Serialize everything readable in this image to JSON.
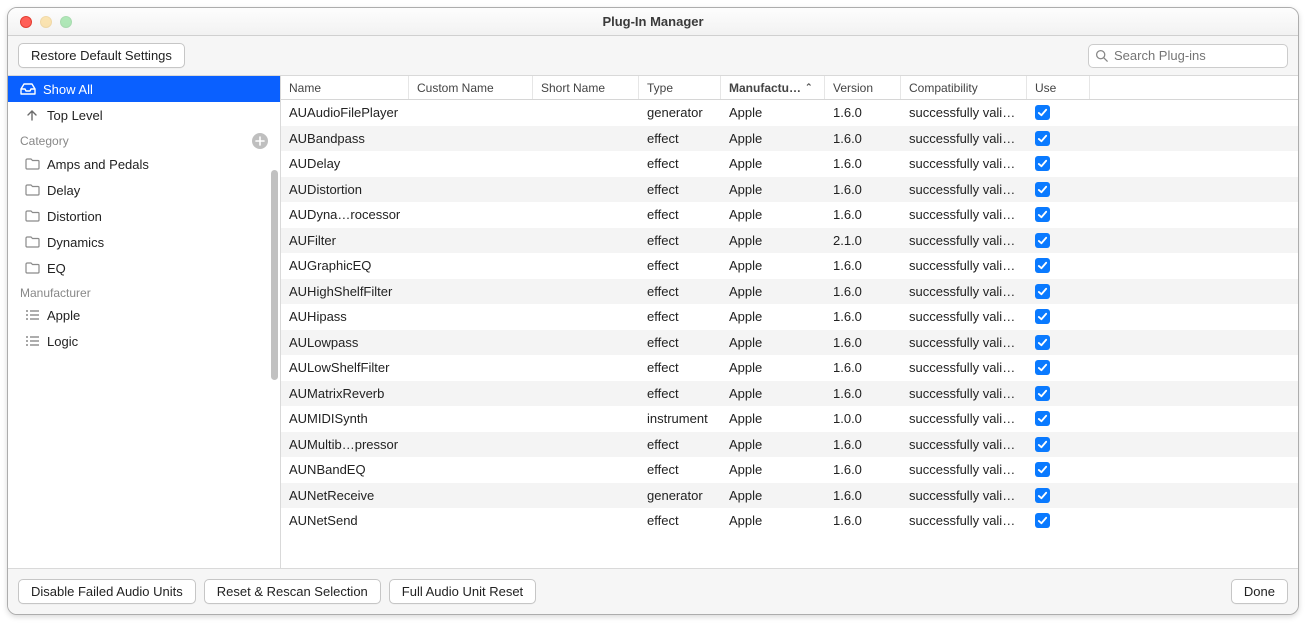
{
  "window": {
    "title": "Plug-In Manager"
  },
  "toolbar": {
    "restore": "Restore Default Settings",
    "search_placeholder": "Search Plug-ins"
  },
  "sidebar": {
    "show_all": "Show All",
    "top_level": "Top Level",
    "category_header": "Category",
    "categories": [
      {
        "label": "Amps and Pedals"
      },
      {
        "label": "Delay"
      },
      {
        "label": "Distortion"
      },
      {
        "label": "Dynamics"
      },
      {
        "label": "EQ"
      }
    ],
    "manufacturer_header": "Manufacturer",
    "manufacturers": [
      {
        "label": "Apple"
      },
      {
        "label": "Logic"
      }
    ]
  },
  "table": {
    "columns": {
      "name": "Name",
      "custom": "Custom Name",
      "short": "Short Name",
      "type": "Type",
      "manufacturer": "Manufactu…",
      "version": "Version",
      "compat": "Compatibility",
      "use": "Use"
    },
    "rows": [
      {
        "name": "AUAudioFilePlayer",
        "type": "generator",
        "mfr": "Apple",
        "ver": "1.6.0",
        "compat": "successfully vali…",
        "use": true
      },
      {
        "name": "AUBandpass",
        "type": "effect",
        "mfr": "Apple",
        "ver": "1.6.0",
        "compat": "successfully vali…",
        "use": true
      },
      {
        "name": "AUDelay",
        "type": "effect",
        "mfr": "Apple",
        "ver": "1.6.0",
        "compat": "successfully vali…",
        "use": true
      },
      {
        "name": "AUDistortion",
        "type": "effect",
        "mfr": "Apple",
        "ver": "1.6.0",
        "compat": "successfully vali…",
        "use": true
      },
      {
        "name": "AUDyna…rocessor",
        "type": "effect",
        "mfr": "Apple",
        "ver": "1.6.0",
        "compat": "successfully vali…",
        "use": true
      },
      {
        "name": "AUFilter",
        "type": "effect",
        "mfr": "Apple",
        "ver": "2.1.0",
        "compat": "successfully vali…",
        "use": true
      },
      {
        "name": "AUGraphicEQ",
        "type": "effect",
        "mfr": "Apple",
        "ver": "1.6.0",
        "compat": "successfully vali…",
        "use": true
      },
      {
        "name": "AUHighShelfFilter",
        "type": "effect",
        "mfr": "Apple",
        "ver": "1.6.0",
        "compat": "successfully vali…",
        "use": true
      },
      {
        "name": "AUHipass",
        "type": "effect",
        "mfr": "Apple",
        "ver": "1.6.0",
        "compat": "successfully vali…",
        "use": true
      },
      {
        "name": "AULowpass",
        "type": "effect",
        "mfr": "Apple",
        "ver": "1.6.0",
        "compat": "successfully vali…",
        "use": true
      },
      {
        "name": "AULowShelfFilter",
        "type": "effect",
        "mfr": "Apple",
        "ver": "1.6.0",
        "compat": "successfully vali…",
        "use": true
      },
      {
        "name": "AUMatrixReverb",
        "type": "effect",
        "mfr": "Apple",
        "ver": "1.6.0",
        "compat": "successfully vali…",
        "use": true
      },
      {
        "name": "AUMIDISynth",
        "type": "instrument",
        "mfr": "Apple",
        "ver": "1.0.0",
        "compat": "successfully vali…",
        "use": true
      },
      {
        "name": "AUMultib…pressor",
        "type": "effect",
        "mfr": "Apple",
        "ver": "1.6.0",
        "compat": "successfully vali…",
        "use": true
      },
      {
        "name": "AUNBandEQ",
        "type": "effect",
        "mfr": "Apple",
        "ver": "1.6.0",
        "compat": "successfully vali…",
        "use": true
      },
      {
        "name": "AUNetReceive",
        "type": "generator",
        "mfr": "Apple",
        "ver": "1.6.0",
        "compat": "successfully vali…",
        "use": true
      },
      {
        "name": "AUNetSend",
        "type": "effect",
        "mfr": "Apple",
        "ver": "1.6.0",
        "compat": "successfully vali…",
        "use": true
      }
    ]
  },
  "footer": {
    "disable": "Disable Failed Audio Units",
    "reset_rescan": "Reset & Rescan Selection",
    "full_reset": "Full Audio Unit Reset",
    "done": "Done"
  },
  "style": {
    "accent": "#0a60ff",
    "check": "#0a7aff",
    "row_alt": "#f4f4f4",
    "border": "#d9d9d9"
  }
}
